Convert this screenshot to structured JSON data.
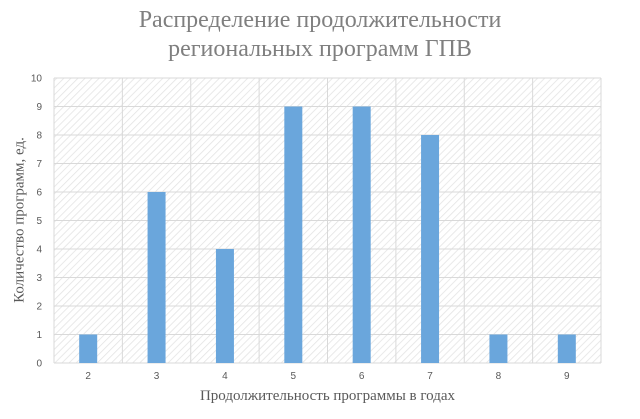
{
  "chart_data": {
    "type": "bar",
    "title": "Распределение продолжительности региональных программ ГПВ",
    "title_lines": [
      "Распределение продолжительности",
      "региональных программ ГПВ"
    ],
    "xlabel": "Продолжительность программы в годах",
    "ylabel": "Количество программ, ед.",
    "categories": [
      "2",
      "3",
      "4",
      "5",
      "6",
      "7",
      "8",
      "9"
    ],
    "values": [
      1,
      6,
      4,
      9,
      9,
      8,
      1,
      1
    ],
    "ylim": [
      0,
      10
    ],
    "yticks": [
      0,
      1,
      2,
      3,
      4,
      5,
      6,
      7,
      8,
      9,
      10
    ],
    "grid": true,
    "legend": null,
    "bar_color": "#6aa6dc",
    "plot_background": "hatched light gray"
  }
}
